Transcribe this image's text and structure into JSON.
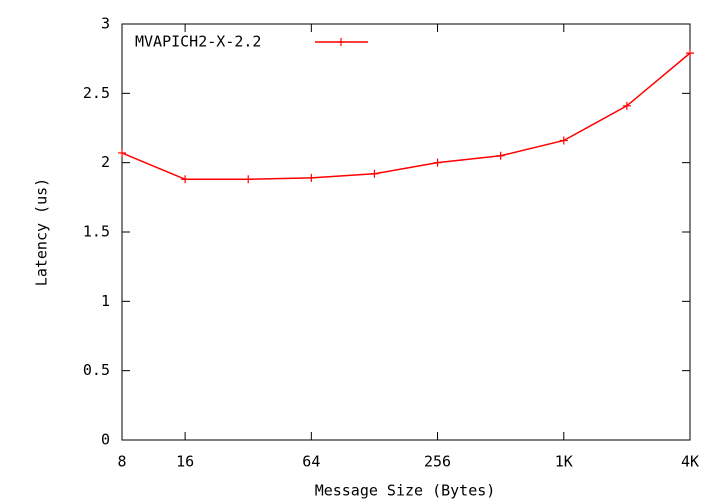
{
  "chart_data": {
    "type": "line",
    "x_label": "Message Size (Bytes)",
    "y_label": "Latency (us)",
    "x": [
      8,
      16,
      32,
      64,
      128,
      256,
      512,
      1024,
      2048,
      4096
    ],
    "series": [
      {
        "name": "MVAPICH2-X-2.2",
        "color": "#ff0000",
        "values": [
          2.07,
          1.88,
          1.88,
          1.89,
          1.92,
          2.0,
          2.05,
          2.16,
          2.41,
          2.79
        ]
      }
    ],
    "xscale": "log",
    "xlim": [
      8,
      4096
    ],
    "xticks": [
      8,
      16,
      64,
      256,
      {
        "value": 1024,
        "label": "1K"
      },
      {
        "value": 4096,
        "label": "4K"
      }
    ],
    "ylim": [
      0,
      3
    ],
    "yticks": [
      0,
      0.5,
      1,
      1.5,
      2,
      2.5,
      3
    ],
    "legend": "top-left",
    "grid": false
  }
}
